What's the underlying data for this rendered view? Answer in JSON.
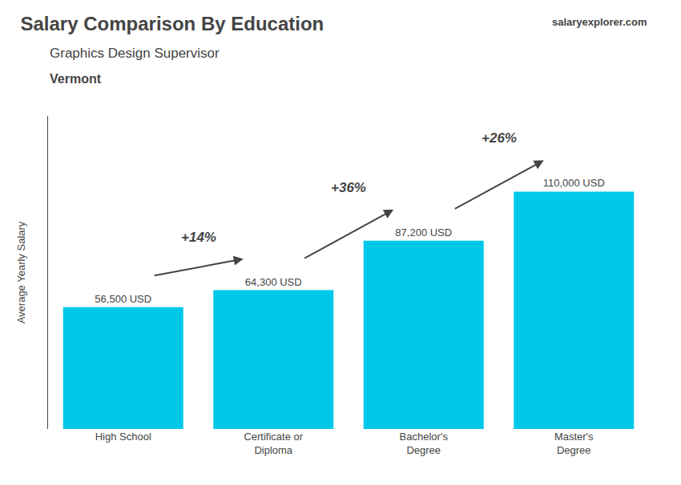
{
  "chart_data": {
    "type": "bar",
    "title": "Salary Comparison By Education",
    "subtitle": "Graphics Design Supervisor",
    "location": "Vermont",
    "source": "salaryexplorer.com",
    "ylabel": "Average Yearly Salary",
    "categories": [
      "High School",
      "Certificate or\nDiploma",
      "Bachelor's\nDegree",
      "Master's\nDegree"
    ],
    "values": [
      56500,
      64300,
      87200,
      110000
    ],
    "value_labels": [
      "56,500 USD",
      "64,300 USD",
      "87,200 USD",
      "110,000 USD"
    ],
    "data_labels": true,
    "annotations": [
      "+14%",
      "+36%",
      "+26%"
    ],
    "color": "#00c8e8",
    "ylim": [
      0,
      145000
    ],
    "yticks": [],
    "grid": false,
    "tick_labels": "x"
  }
}
